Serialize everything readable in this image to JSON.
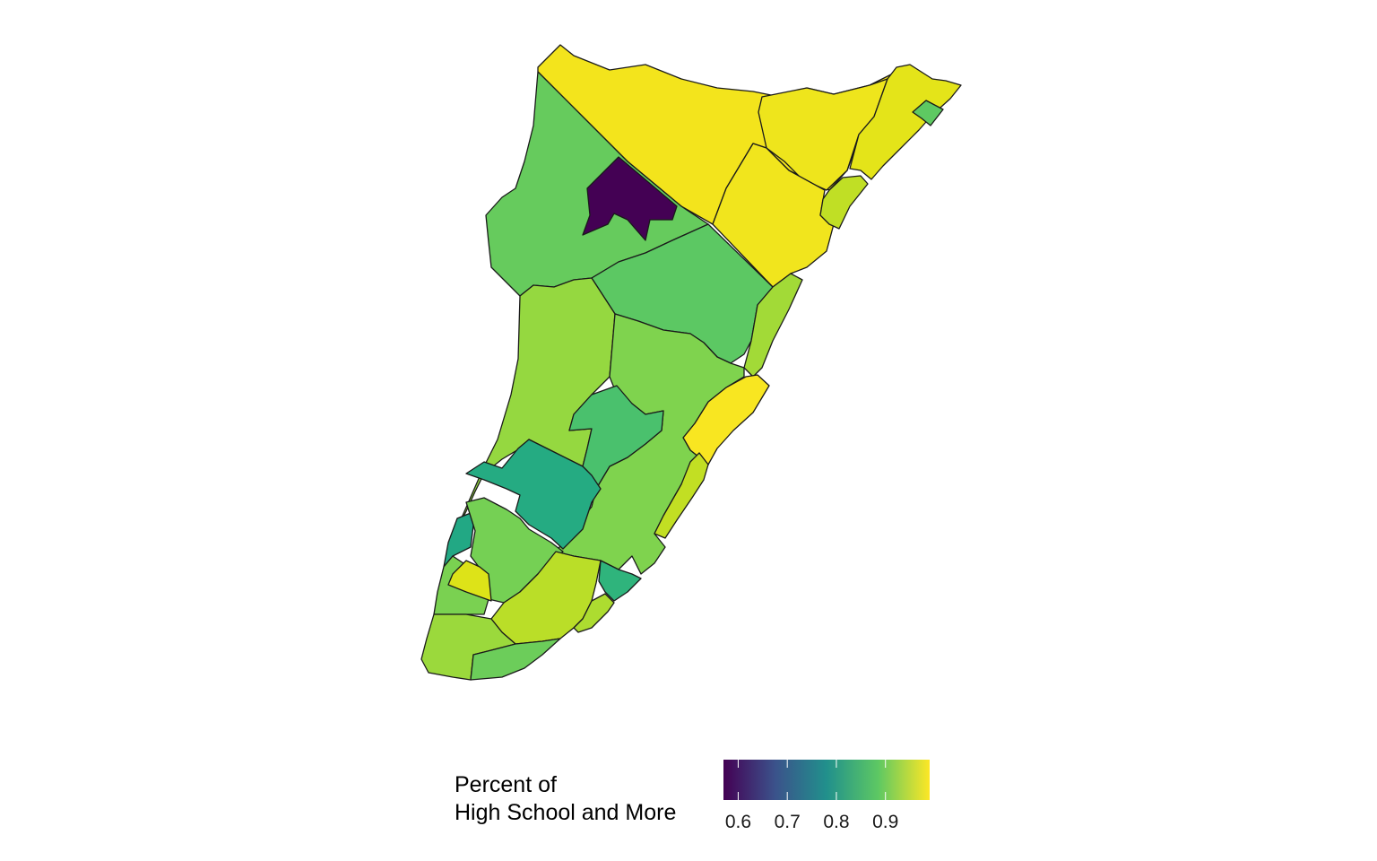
{
  "legend": {
    "title_line1": "Percent of",
    "title_line2": "High School and More",
    "ticks": [
      "0.6",
      "0.7",
      "0.8",
      "0.9"
    ],
    "tick_values": [
      0.6,
      0.7,
      0.8,
      0.9
    ],
    "range": [
      0.57,
      0.99
    ],
    "colors": [
      "#440154",
      "#3b528b",
      "#21908c",
      "#5dc863",
      "#fde725"
    ]
  },
  "regions": [
    {
      "id": "north-strip",
      "value": 0.99,
      "color": "#f3e41c"
    },
    {
      "id": "northeast-top",
      "value": 0.98,
      "color": "#eee51c"
    },
    {
      "id": "northeast-coast",
      "value": 0.97,
      "color": "#e4e419"
    },
    {
      "id": "coastal-small-green",
      "value": 0.86,
      "color": "#5ec962"
    },
    {
      "id": "central-east",
      "value": 0.99,
      "color": "#f1e51d"
    },
    {
      "id": "coastal-lime",
      "value": 0.95,
      "color": "#c0df25"
    },
    {
      "id": "northwest",
      "value": 0.86,
      "color": "#66cb5d"
    },
    {
      "id": "dark-tract",
      "value": 0.57,
      "color": "#440154"
    },
    {
      "id": "center-green",
      "value": 0.85,
      "color": "#5cc863"
    },
    {
      "id": "coastal-strip-mid",
      "value": 0.93,
      "color": "#a2da37"
    },
    {
      "id": "beach-yellow",
      "value": 0.99,
      "color": "#f8e621"
    },
    {
      "id": "west-middle",
      "value": 0.92,
      "color": "#95d840"
    },
    {
      "id": "east-middle",
      "value": 0.89,
      "color": "#7fd34e"
    },
    {
      "id": "inner-teal-green",
      "value": 0.84,
      "color": "#4ac16d"
    },
    {
      "id": "teal-central",
      "value": 0.81,
      "color": "#25ab82"
    },
    {
      "id": "teal-west",
      "value": 0.8,
      "color": "#22a884"
    },
    {
      "id": "south-green",
      "value": 0.87,
      "color": "#75d054"
    },
    {
      "id": "southwest-green",
      "value": 0.88,
      "color": "#7ad151"
    },
    {
      "id": "southwest-yellow",
      "value": 0.97,
      "color": "#dde318"
    },
    {
      "id": "south-lime",
      "value": 0.95,
      "color": "#bade28"
    },
    {
      "id": "southeast-teal",
      "value": 0.82,
      "color": "#2fb47c"
    },
    {
      "id": "southeast-coast",
      "value": 0.94,
      "color": "#addc30"
    },
    {
      "id": "south-tip",
      "value": 0.92,
      "color": "#9bd93c"
    },
    {
      "id": "south-tip-east",
      "value": 0.87,
      "color": "#6ccd5a"
    },
    {
      "id": "southeast-beach",
      "value": 0.95,
      "color": "#c2df23"
    }
  ]
}
